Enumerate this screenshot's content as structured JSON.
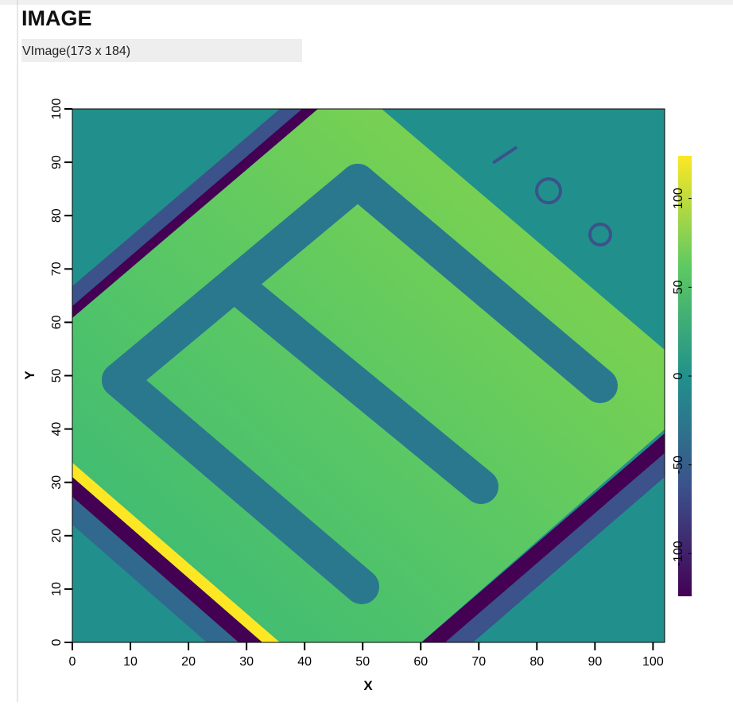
{
  "header": {
    "title": "IMAGE",
    "subtitle": "VImage(173 x 184)"
  },
  "chart_data": {
    "type": "image",
    "xlabel": "X",
    "ylabel": "Y",
    "xlim": [
      0,
      102
    ],
    "ylim": [
      0,
      100
    ],
    "xticks": [
      0,
      10,
      20,
      30,
      40,
      50,
      60,
      70,
      80,
      90,
      100
    ],
    "yticks": [
      0,
      10,
      20,
      30,
      40,
      50,
      60,
      70,
      80,
      90,
      100
    ],
    "clim": [
      -124,
      124
    ],
    "cticks": [
      -100,
      -50,
      0,
      50,
      100
    ]
  }
}
